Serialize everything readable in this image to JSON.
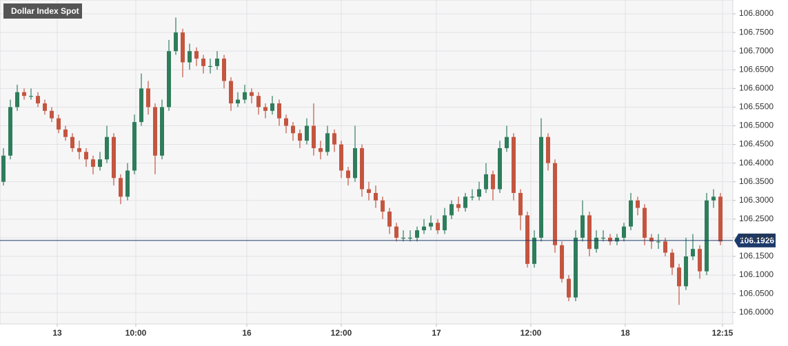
{
  "chart_data": {
    "type": "candlestick",
    "title": "Dollar Index Spot",
    "series": [
      {
        "up_color": "#2e7d5b",
        "down_color": "#c4553f",
        "open": [
          106.35,
          106.42,
          106.55,
          106.59,
          106.58,
          106.58,
          106.56,
          106.54,
          106.52,
          106.49,
          106.47,
          106.44,
          106.43,
          106.41,
          106.39,
          106.41,
          106.47,
          106.36,
          106.31,
          106.38,
          106.51,
          106.6,
          106.55,
          106.42,
          106.55,
          106.7,
          106.75,
          106.67,
          106.7,
          106.68,
          106.66,
          106.66,
          106.68,
          106.62,
          106.56,
          106.57,
          106.59,
          106.58,
          106.55,
          106.54,
          106.56,
          106.52,
          106.5,
          106.48,
          106.46,
          106.5,
          106.44,
          106.43,
          106.48,
          106.45,
          106.38,
          106.36,
          106.44,
          106.33,
          106.32,
          106.3,
          106.27,
          106.23,
          106.2,
          106.2,
          106.2,
          106.22,
          106.23,
          106.24,
          106.22,
          106.26,
          106.29,
          106.28,
          106.31,
          106.31,
          106.33,
          106.37,
          106.33,
          106.44,
          106.47,
          106.32,
          106.26,
          106.13,
          106.2,
          106.47,
          106.4,
          106.18,
          106.09,
          106.04,
          106.2,
          106.26,
          106.17,
          106.2,
          106.2,
          106.19,
          106.2,
          106.23,
          106.3,
          106.28,
          106.2,
          106.19,
          106.19,
          106.16,
          106.12,
          106.07,
          106.15,
          106.17,
          106.11,
          106.3,
          106.31
        ],
        "high": [
          106.44,
          106.57,
          106.61,
          106.6,
          106.6,
          106.59,
          106.57,
          106.55,
          106.53,
          106.5,
          106.48,
          106.46,
          106.44,
          106.42,
          106.43,
          106.5,
          106.48,
          106.37,
          106.4,
          106.53,
          106.64,
          106.62,
          106.56,
          106.57,
          106.73,
          106.79,
          106.76,
          106.72,
          106.71,
          106.69,
          106.68,
          106.7,
          106.69,
          106.63,
          106.59,
          106.61,
          106.6,
          106.59,
          106.56,
          106.58,
          106.57,
          106.53,
          106.51,
          106.49,
          106.52,
          106.56,
          106.46,
          106.5,
          106.49,
          106.46,
          106.39,
          106.5,
          106.45,
          106.35,
          106.34,
          106.31,
          106.28,
          106.24,
          106.22,
          106.22,
          106.23,
          106.25,
          106.26,
          106.25,
          106.28,
          106.3,
          106.31,
          106.32,
          106.33,
          106.35,
          106.4,
          106.38,
          106.46,
          106.5,
          106.48,
          106.33,
          106.27,
          106.22,
          106.52,
          106.48,
          106.41,
          106.19,
          106.1,
          106.22,
          106.3,
          106.27,
          106.22,
          106.22,
          106.21,
          106.21,
          106.24,
          106.32,
          106.31,
          106.29,
          106.21,
          106.21,
          106.2,
          106.17,
          106.13,
          106.2,
          106.21,
          106.18,
          106.32,
          106.33,
          106.32
        ],
        "low": [
          106.34,
          106.41,
          106.54,
          106.57,
          106.57,
          106.55,
          106.53,
          106.51,
          106.48,
          106.46,
          106.43,
          106.41,
          106.39,
          106.37,
          106.38,
          106.4,
          106.34,
          106.29,
          106.3,
          106.37,
          106.5,
          106.53,
          106.37,
          106.41,
          106.54,
          106.69,
          106.63,
          106.65,
          106.66,
          106.64,
          106.64,
          106.65,
          106.6,
          106.54,
          106.55,
          106.56,
          106.56,
          106.53,
          106.52,
          106.53,
          106.5,
          106.48,
          106.46,
          106.44,
          106.45,
          106.42,
          106.41,
          106.42,
          106.43,
          106.36,
          106.34,
          106.35,
          106.31,
          106.3,
          106.28,
          106.25,
          106.21,
          106.19,
          106.19,
          106.19,
          106.19,
          106.21,
          106.22,
          106.21,
          106.21,
          106.25,
          106.27,
          106.27,
          106.3,
          106.3,
          106.32,
          106.3,
          106.32,
          106.43,
          106.3,
          106.22,
          106.12,
          106.12,
          106.19,
          106.38,
          106.16,
          106.08,
          106.03,
          106.03,
          106.19,
          106.15,
          106.16,
          106.19,
          106.18,
          106.18,
          106.19,
          106.22,
          106.26,
          106.18,
          106.17,
          106.17,
          106.15,
          106.1,
          106.02,
          106.06,
          106.14,
          106.09,
          106.1,
          106.28,
          106.18
        ],
        "close": [
          106.42,
          106.55,
          106.59,
          106.58,
          106.58,
          106.56,
          106.54,
          106.52,
          106.49,
          106.47,
          106.44,
          106.43,
          106.41,
          106.39,
          106.41,
          106.47,
          106.36,
          106.31,
          106.38,
          106.51,
          106.6,
          106.55,
          106.42,
          106.55,
          106.7,
          106.75,
          106.67,
          106.7,
          106.68,
          106.66,
          106.66,
          106.68,
          106.62,
          106.56,
          106.57,
          106.59,
          106.58,
          106.55,
          106.54,
          106.56,
          106.52,
          106.5,
          106.48,
          106.46,
          106.5,
          106.44,
          106.43,
          106.48,
          106.45,
          106.38,
          106.36,
          106.44,
          106.33,
          106.32,
          106.3,
          106.27,
          106.23,
          106.2,
          106.2,
          106.2,
          106.22,
          106.23,
          106.24,
          106.22,
          106.26,
          106.29,
          106.28,
          106.31,
          106.31,
          106.33,
          106.37,
          106.33,
          106.44,
          106.47,
          106.32,
          106.26,
          106.13,
          106.2,
          106.47,
          106.4,
          106.18,
          106.09,
          106.04,
          106.2,
          106.26,
          106.17,
          106.2,
          106.2,
          106.19,
          106.2,
          106.23,
          106.3,
          106.28,
          106.2,
          106.19,
          106.19,
          106.16,
          106.12,
          106.07,
          106.15,
          106.17,
          106.11,
          106.3,
          106.31,
          106.19
        ]
      }
    ],
    "last_price": 106.1926,
    "last_price_color": "#1c3a6b",
    "xlim": [
      0,
      105
    ],
    "xticks": [
      {
        "value": 8.3,
        "label": "13"
      },
      {
        "value": 19.7,
        "label": "10:00"
      },
      {
        "value": 35.8,
        "label": "16"
      },
      {
        "value": 49.5,
        "label": "12:00"
      },
      {
        "value": 63.3,
        "label": "17"
      },
      {
        "value": 77,
        "label": "12:00"
      },
      {
        "value": 90.7,
        "label": "18"
      },
      {
        "value": 104.8,
        "label": "12:15"
      }
    ],
    "ylim": [
      105.969,
      106.837
    ],
    "yticks": [
      {
        "value": 106.0,
        "label": "106.0000"
      },
      {
        "value": 106.05,
        "label": "106.0500"
      },
      {
        "value": 106.1,
        "label": "106.1000"
      },
      {
        "value": 106.15,
        "label": "106.1500"
      },
      {
        "value": 106.2,
        "label": "106.2000"
      },
      {
        "value": 106.25,
        "label": "106.2500"
      },
      {
        "value": 106.3,
        "label": "106.3000"
      },
      {
        "value": 106.35,
        "label": "106.3500"
      },
      {
        "value": 106.4,
        "label": "106.4000"
      },
      {
        "value": 106.45,
        "label": "106.4500"
      },
      {
        "value": 106.5,
        "label": "106.5000"
      },
      {
        "value": 106.55,
        "label": "106.5500"
      },
      {
        "value": 106.6,
        "label": "106.6000"
      },
      {
        "value": 106.65,
        "label": "106.6500"
      },
      {
        "value": 106.7,
        "label": "106.7000"
      },
      {
        "value": 106.75,
        "label": "106.7500"
      },
      {
        "value": 106.8,
        "label": "106.8000"
      }
    ],
    "grid": true
  }
}
